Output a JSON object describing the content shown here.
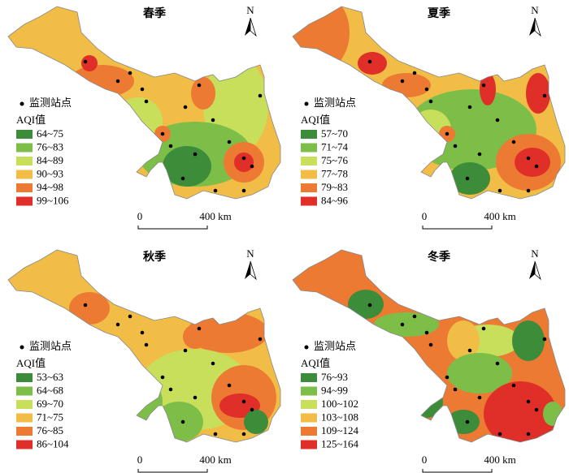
{
  "colors": [
    "#3c8c3a",
    "#7dbe48",
    "#c8df5c",
    "#f1bd46",
    "#ec7a32",
    "#df2f28"
  ],
  "panels": [
    {
      "title": "春季",
      "north": "N",
      "station_label": "监测站点",
      "legend_title": "AQI值",
      "legend": [
        "64~75",
        "76~83",
        "84~89",
        "90~93",
        "94~98",
        "99~106"
      ],
      "scale": [
        "0",
        "400 km"
      ]
    },
    {
      "title": "夏季",
      "north": "N",
      "station_label": "监测站点",
      "legend_title": "AQI值",
      "legend": [
        "57~70",
        "71~74",
        "75~76",
        "77~78",
        "79~83",
        "84~96"
      ],
      "scale": [
        "0",
        "400 km"
      ]
    },
    {
      "title": "秋季",
      "north": "N",
      "station_label": "监测站点",
      "legend_title": "AQI值",
      "legend": [
        "53~63",
        "64~68",
        "69~70",
        "71~75",
        "76~85",
        "86~104"
      ],
      "scale": [
        "0",
        "400 km"
      ]
    },
    {
      "title": "冬季",
      "north": "N",
      "station_label": "监测站点",
      "legend_title": "AQI值",
      "legend": [
        "76~93",
        "94~99",
        "100~102",
        "103~108",
        "109~124",
        "125~164"
      ],
      "scale": [
        "0",
        "400 km"
      ]
    }
  ]
}
